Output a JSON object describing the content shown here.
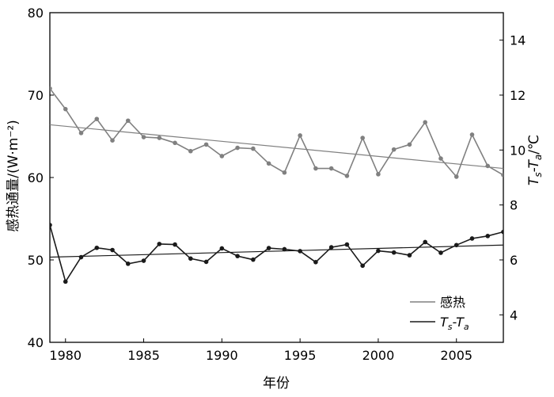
{
  "chart_data": {
    "type": "line",
    "xlabel": "年份",
    "ylabel_left": "感热通量/(W·m⁻²)",
    "ylabel_right_parts": [
      "T",
      "s",
      "-T",
      "a",
      "/℃"
    ],
    "xlim": [
      1979,
      2008
    ],
    "ylim_left": [
      40,
      80
    ],
    "ylim_right": [
      3,
      15
    ],
    "x_ticks": [
      1980,
      1985,
      1990,
      1995,
      2000,
      2005
    ],
    "y_ticks_left": [
      40,
      50,
      60,
      70,
      80
    ],
    "y_ticks_right": [
      4,
      6,
      8,
      10,
      12,
      14
    ],
    "grid": false,
    "legend_position": "bottom-right",
    "x": [
      1979,
      1980,
      1981,
      1982,
      1983,
      1984,
      1985,
      1986,
      1987,
      1988,
      1989,
      1990,
      1991,
      1992,
      1993,
      1994,
      1995,
      1996,
      1997,
      1998,
      1999,
      2000,
      2001,
      2002,
      2003,
      2004,
      2005,
      2006,
      2007,
      2008
    ],
    "series": [
      {
        "name": "感热",
        "axis": "left",
        "color": "#808080",
        "values": [
          70.8,
          68.3,
          65.4,
          67.1,
          64.5,
          66.9,
          64.9,
          64.8,
          64.2,
          63.2,
          64.0,
          62.6,
          63.6,
          63.5,
          61.7,
          60.6,
          65.1,
          61.1,
          61.1,
          60.2,
          64.8,
          60.4,
          63.4,
          64.0,
          66.7,
          62.3,
          60.1,
          65.2,
          61.4,
          60.3
        ],
        "trend": [
          66.4,
          61.1
        ]
      },
      {
        "name_parts": [
          "T",
          "s",
          "-T",
          "a"
        ],
        "axis": "right",
        "color": "#1a1a1a",
        "values": [
          7.27,
          5.21,
          6.1,
          6.44,
          6.36,
          5.86,
          5.97,
          6.58,
          6.56,
          6.05,
          5.93,
          6.42,
          6.14,
          6.01,
          6.43,
          6.39,
          6.32,
          5.92,
          6.46,
          6.56,
          5.79,
          6.33,
          6.27,
          6.17,
          6.65,
          6.26,
          6.54,
          6.78,
          6.87,
          7.02
        ],
        "trend": [
          6.1,
          6.54
        ]
      }
    ]
  }
}
